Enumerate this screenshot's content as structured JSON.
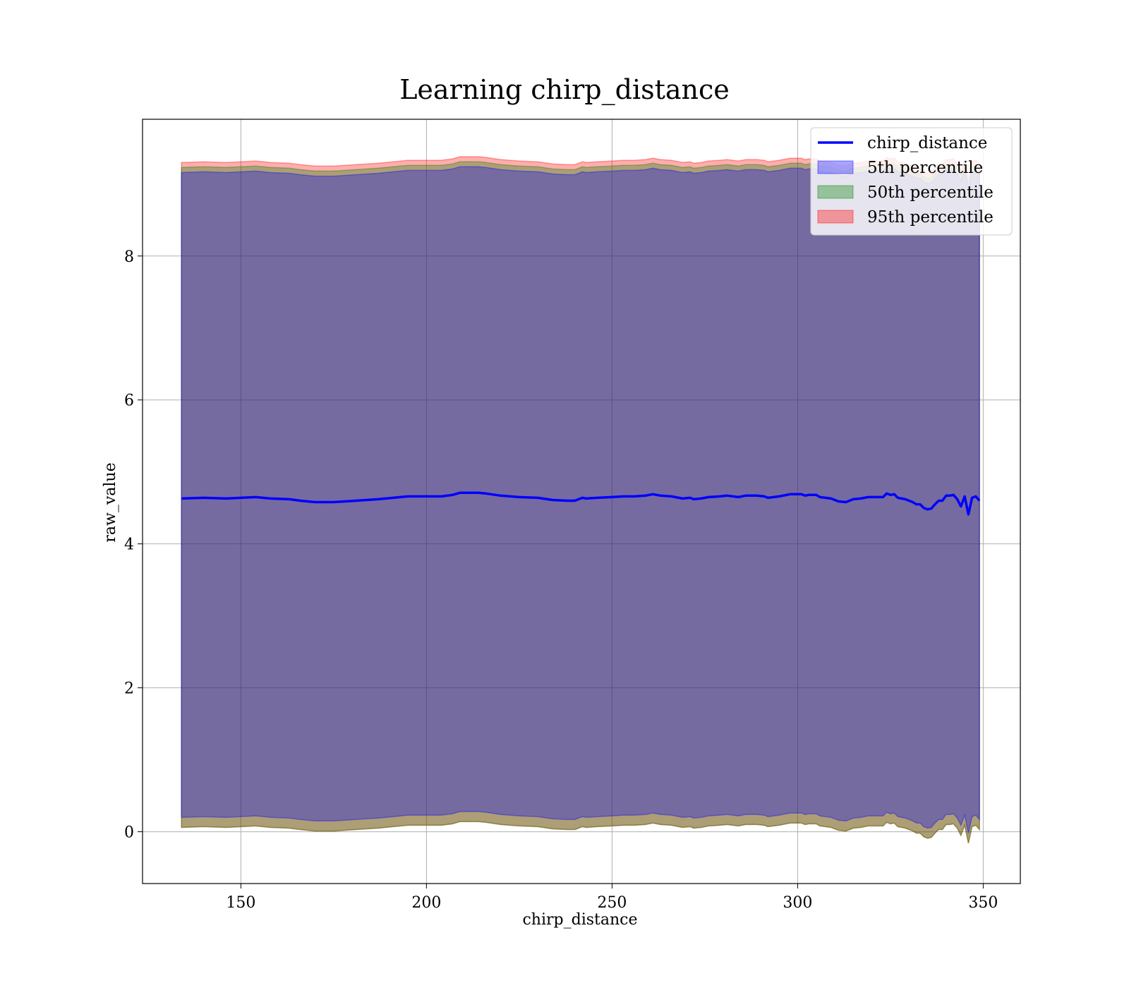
{
  "chart_data": {
    "type": "area",
    "title": "Learning chirp_distance",
    "xlabel": "chirp_distance",
    "ylabel": "raw_value",
    "xlim": [
      123.5,
      360
    ],
    "ylim": [
      -0.72,
      9.9
    ],
    "xticks": [
      150,
      200,
      250,
      300,
      350
    ],
    "yticks": [
      0,
      2,
      4,
      6,
      8
    ],
    "grid": true,
    "legend_position": "top-right",
    "x": [
      134,
      140,
      146,
      154,
      158,
      163,
      166,
      170,
      175,
      181,
      187,
      191,
      195,
      200,
      204,
      207,
      209,
      211,
      214,
      216,
      220,
      225,
      230,
      234,
      238,
      240,
      242,
      243,
      246,
      250,
      253,
      256,
      259,
      261,
      263,
      266,
      269,
      271,
      272,
      274,
      276,
      279,
      281,
      284,
      286,
      289,
      291,
      292,
      295,
      298,
      301,
      302,
      303,
      305,
      306,
      309,
      311,
      313,
      315,
      317,
      319,
      321,
      323,
      324,
      325,
      326,
      327,
      329,
      331,
      332,
      333,
      334,
      335,
      336,
      337,
      338,
      339,
      340,
      341,
      342,
      343,
      344,
      345,
      346,
      347,
      348,
      349
    ],
    "series": [
      {
        "name": "chirp_distance",
        "kind": "line",
        "color": "#0000ff",
        "values": [
          4.63,
          4.64,
          4.63,
          4.65,
          4.63,
          4.62,
          4.6,
          4.58,
          4.58,
          4.6,
          4.62,
          4.64,
          4.66,
          4.66,
          4.66,
          4.68,
          4.71,
          4.71,
          4.71,
          4.7,
          4.67,
          4.65,
          4.64,
          4.61,
          4.6,
          4.6,
          4.64,
          4.63,
          4.64,
          4.65,
          4.66,
          4.66,
          4.67,
          4.69,
          4.67,
          4.66,
          4.63,
          4.64,
          4.62,
          4.63,
          4.65,
          4.66,
          4.67,
          4.65,
          4.67,
          4.67,
          4.66,
          4.64,
          4.66,
          4.69,
          4.69,
          4.67,
          4.68,
          4.68,
          4.65,
          4.63,
          4.59,
          4.58,
          4.62,
          4.63,
          4.65,
          4.65,
          4.65,
          4.7,
          4.68,
          4.69,
          4.64,
          4.62,
          4.58,
          4.55,
          4.55,
          4.5,
          4.48,
          4.49,
          4.55,
          4.6,
          4.6,
          4.67,
          4.67,
          4.68,
          4.62,
          4.52,
          4.66,
          4.41,
          4.64,
          4.66,
          4.6
        ]
      },
      {
        "name": "5th percentile",
        "kind": "band",
        "color": "#0000ff",
        "lower_offset": 0.1,
        "upper_offset": 4.53
      },
      {
        "name": "50th percentile",
        "kind": "band",
        "color": "#008000",
        "lower_offset": -0.04,
        "upper_offset": 4.6
      },
      {
        "name": "95th percentile",
        "kind": "band",
        "color": "#ff0000",
        "lower_offset": -0.04,
        "upper_offset": 4.67
      }
    ]
  }
}
